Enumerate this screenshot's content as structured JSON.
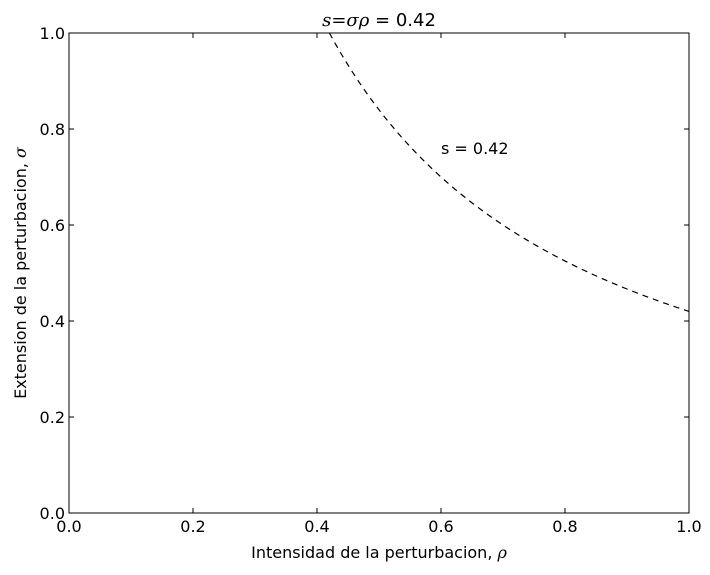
{
  "chart_data": {
    "type": "line",
    "title": {
      "math": "s=σρ",
      "text": " = 0.42"
    },
    "xlabel": {
      "text": "Intensidad de la perturbacion, ",
      "symbol": "ρ"
    },
    "ylabel": {
      "text": "Extension de la perturbacion, ",
      "symbol": "σ"
    },
    "xlim": [
      0.0,
      1.0
    ],
    "ylim": [
      0.0,
      1.0
    ],
    "xticks": [
      "0.0",
      "0.2",
      "0.4",
      "0.6",
      "0.8",
      "1.0"
    ],
    "yticks": [
      "0.0",
      "0.2",
      "0.4",
      "0.6",
      "0.8",
      "1.0"
    ],
    "grid": false,
    "series": [
      {
        "s": 0.42,
        "equation": "σ = s / ρ",
        "style": "dashed",
        "color": "#000000",
        "x_range": [
          0.42,
          1.0
        ]
      }
    ],
    "annotations": [
      {
        "text": "s = 0.42",
        "x": 0.6,
        "y": 0.76
      }
    ]
  }
}
